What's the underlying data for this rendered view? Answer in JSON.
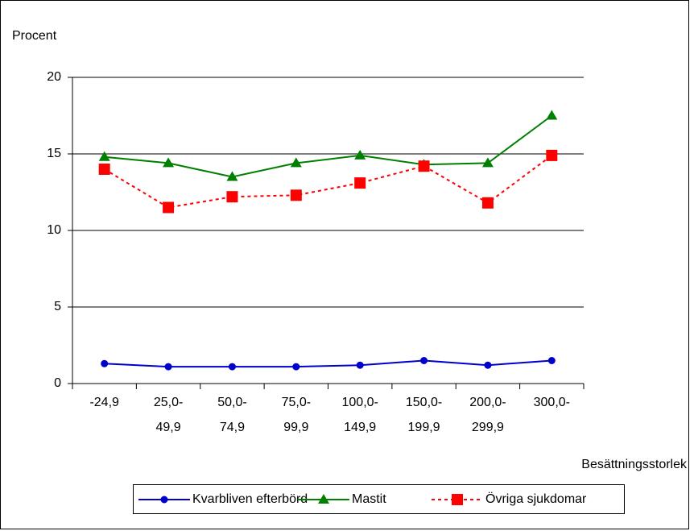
{
  "chart_data": {
    "type": "line",
    "y_label": "Procent",
    "x_label": "Besättningsstorlek",
    "categories": [
      "-24,9",
      "25,0-\n49,9",
      "50,0-\n74,9",
      "75,0-\n99,9",
      "100,0-\n149,9",
      "150,0-\n199,9",
      "200,0-\n299,9",
      "300,0-"
    ],
    "ylim": [
      0,
      20
    ],
    "yticks": [
      0,
      5,
      10,
      15,
      20
    ],
    "grid": true,
    "series": [
      {
        "name": "Kvarbliven efterbörd",
        "color": "#0000cc",
        "marker": "circle",
        "dashed": false,
        "values": [
          1.3,
          1.1,
          1.1,
          1.1,
          1.2,
          1.5,
          1.2,
          1.5
        ]
      },
      {
        "name": "Mastit",
        "color": "#008000",
        "marker": "triangle",
        "dashed": false,
        "values": [
          14.8,
          14.4,
          13.5,
          14.4,
          14.9,
          14.3,
          14.4,
          17.5
        ]
      },
      {
        "name": "Övriga sjukdomar",
        "color": "#ff0000",
        "marker": "square",
        "dashed": true,
        "values": [
          14.0,
          11.5,
          12.2,
          12.3,
          13.1,
          14.2,
          11.8,
          14.9
        ]
      }
    ]
  }
}
